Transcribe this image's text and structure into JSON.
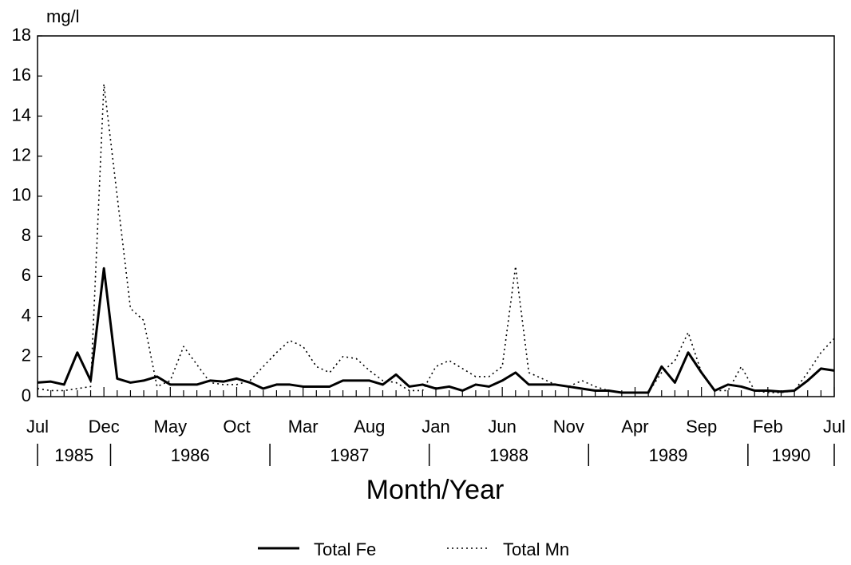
{
  "chart_data": {
    "type": "line",
    "y_label": "mg/l",
    "x_label": "Month/Year",
    "categories": [
      "Jul",
      null,
      null,
      null,
      null,
      "Dec",
      null,
      null,
      null,
      null,
      "May",
      null,
      null,
      null,
      null,
      "Oct",
      null,
      null,
      null,
      null,
      "Mar",
      null,
      null,
      null,
      null,
      "Aug",
      null,
      null,
      null,
      null,
      "Jan",
      null,
      null,
      null,
      null,
      "Jun",
      null,
      null,
      null,
      null,
      "Nov",
      null,
      null,
      null,
      null,
      "Apr",
      null,
      null,
      null,
      null,
      "Sep",
      null,
      null,
      null,
      null,
      "Feb",
      null,
      null,
      null,
      null,
      "Jul"
    ],
    "years": [
      "1985",
      "1986",
      "1987",
      "1988",
      "1989",
      "1990"
    ],
    "series": [
      {
        "name": "Total Fe",
        "color": "#000000",
        "style": "solid",
        "values": [
          0.7,
          0.75,
          0.6,
          2.2,
          0.8,
          6.4,
          0.9,
          0.7,
          0.8,
          1.0,
          0.6,
          0.6,
          0.6,
          0.8,
          0.75,
          0.9,
          0.7,
          0.4,
          0.6,
          0.6,
          0.5,
          0.5,
          0.5,
          0.8,
          0.8,
          0.8,
          0.6,
          1.1,
          0.5,
          0.6,
          0.4,
          0.5,
          0.3,
          0.6,
          0.5,
          0.8,
          1.2,
          0.6,
          0.6,
          0.6,
          0.5,
          0.4,
          0.3,
          0.3,
          0.2,
          0.2,
          0.2,
          1.5,
          0.7,
          2.2,
          1.2,
          0.3,
          0.6,
          0.5,
          0.3,
          0.3,
          0.25,
          0.3,
          0.8,
          1.4,
          1.3
        ]
      },
      {
        "name": "Total Mn",
        "color": "#000000",
        "style": "dotted",
        "values": [
          0.4,
          0.3,
          0.3,
          0.4,
          0.5,
          15.6,
          10,
          4.4,
          3.8,
          0.5,
          0.8,
          2.5,
          1.6,
          0.7,
          0.6,
          0.6,
          0.8,
          1.5,
          2.2,
          2.8,
          2.5,
          1.5,
          1.2,
          2.0,
          1.9,
          1.3,
          0.8,
          0.7,
          0.3,
          0.3,
          1.5,
          1.8,
          1.4,
          1.0,
          1.0,
          1.5,
          6.5,
          1.2,
          0.9,
          0.6,
          0.5,
          0.8,
          0.5,
          0.3,
          0.2,
          0.2,
          0.2,
          1.2,
          1.8,
          3.2,
          1.2,
          0.3,
          0.3,
          1.5,
          0.3,
          0.2,
          0.2,
          0.3,
          1.2,
          2.2,
          2.9
        ]
      }
    ],
    "ylim": [
      0,
      18
    ],
    "yticks": [
      0,
      2,
      4,
      6,
      8,
      10,
      12,
      14,
      16,
      18
    ],
    "grid": false,
    "legend": "bottom"
  }
}
